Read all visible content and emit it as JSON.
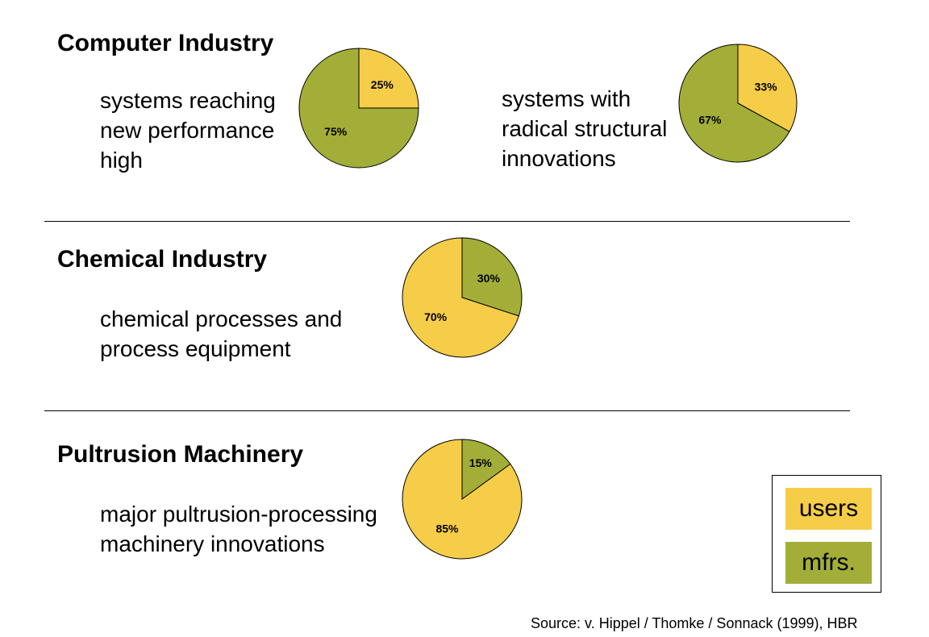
{
  "colors": {
    "users": "#F6CD48",
    "mfrs": "#A3AE38",
    "stroke": "#000000"
  },
  "sections": [
    {
      "title": "Computer Industry",
      "charts": [
        {
          "description": [
            "systems reaching",
            "new performance",
            "high"
          ]
        },
        {
          "description": [
            "systems with",
            "radical structural",
            "innovations"
          ]
        }
      ]
    },
    {
      "title": "Chemical Industry",
      "charts": [
        {
          "description": [
            "chemical processes and",
            "process equipment"
          ]
        }
      ]
    },
    {
      "title": "Pultrusion Machinery",
      "charts": [
        {
          "description": [
            "major pultrusion-processing",
            "machinery innovations"
          ]
        }
      ]
    }
  ],
  "chart_data": [
    {
      "type": "pie",
      "labels": [
        "users",
        "mfrs."
      ],
      "values": [
        25,
        75
      ],
      "data_labels": [
        "25%",
        "75%"
      ]
    },
    {
      "type": "pie",
      "labels": [
        "users",
        "mfrs."
      ],
      "values": [
        33,
        67
      ],
      "data_labels": [
        "33%",
        "67%"
      ]
    },
    {
      "type": "pie",
      "labels": [
        "mfrs.",
        "users"
      ],
      "values": [
        30,
        70
      ],
      "data_labels": [
        "30%",
        "70%"
      ]
    },
    {
      "type": "pie",
      "labels": [
        "mfrs.",
        "users"
      ],
      "values": [
        15,
        85
      ],
      "data_labels": [
        "15%",
        "85%"
      ]
    }
  ],
  "legend": {
    "entries": [
      {
        "label": "users",
        "key": "users"
      },
      {
        "label": "mfrs.",
        "key": "mfrs"
      }
    ]
  },
  "source": "Source: v. Hippel / Thomke / Sonnack (1999), HBR"
}
